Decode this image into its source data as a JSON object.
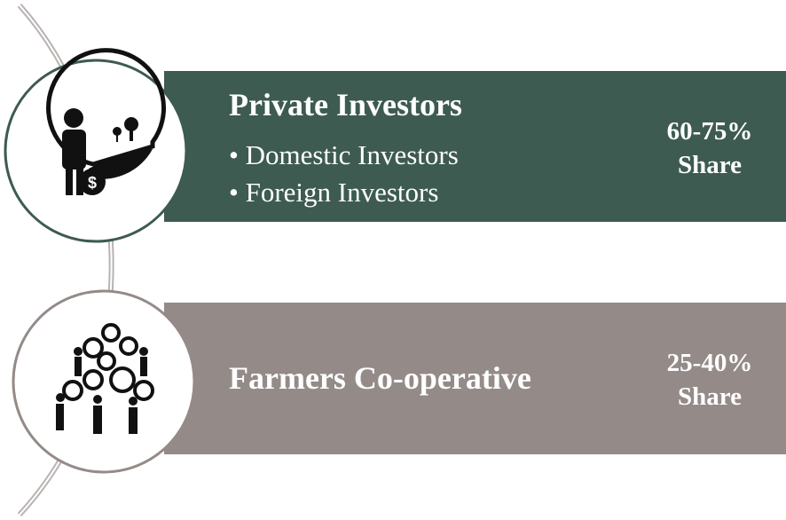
{
  "items": [
    {
      "title": "Private Investors",
      "bullets": [
        "• Domestic Investors",
        "• Foreign Investors"
      ],
      "share": "60-75%",
      "share_label": "Share"
    },
    {
      "title": "Farmers Co-operative",
      "bullets": [],
      "share": "25-40%",
      "share_label": "Share"
    }
  ]
}
